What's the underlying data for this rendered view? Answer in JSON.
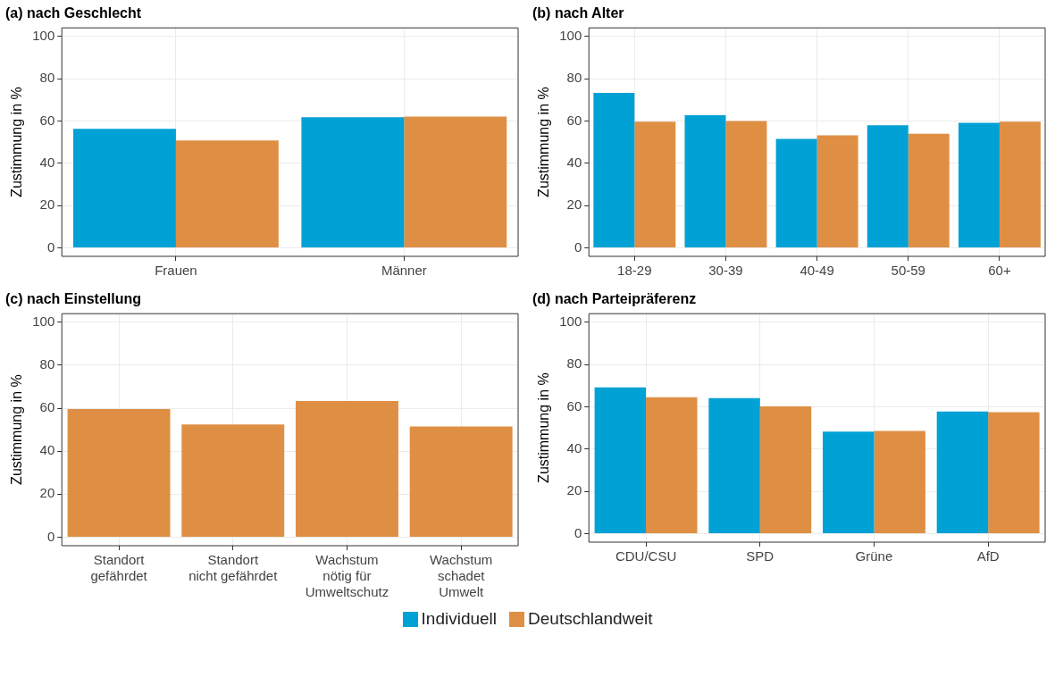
{
  "chart_data": [
    {
      "type": "bar",
      "title": "(a) nach Geschlecht",
      "ylabel": "Zustimmung in %",
      "categories": [
        "Frauen",
        "Männer"
      ],
      "series": [
        {
          "name": "Individuell",
          "color": "#00a1d5",
          "values": [
            56.3,
            61.8
          ]
        },
        {
          "name": "Deutschlandweit",
          "color": "#df8f44",
          "values": [
            50.8,
            62.1
          ]
        }
      ],
      "ylim": [
        -4,
        104
      ],
      "yticks": [
        0,
        20,
        40,
        60,
        80,
        100
      ],
      "grid": true,
      "legend": "bottom"
    },
    {
      "type": "bar",
      "title": "(b) nach Alter",
      "ylabel": "Zustimmung in %",
      "categories": [
        "18-29",
        "30-39",
        "40-49",
        "50-59",
        "60+"
      ],
      "series": [
        {
          "name": "Individuell",
          "color": "#00a1d5",
          "values": [
            73.3,
            62.7,
            51.5,
            58.0,
            59.1
          ]
        },
        {
          "name": "Deutschlandweit",
          "color": "#df8f44",
          "values": [
            59.6,
            60.0,
            53.2,
            53.9,
            59.6
          ]
        }
      ],
      "ylim": [
        -4,
        104
      ],
      "yticks": [
        0,
        20,
        40,
        60,
        80,
        100
      ],
      "grid": true,
      "legend": "bottom"
    },
    {
      "type": "bar",
      "title": "(c) nach Einstellung",
      "ylabel": "Zustimmung in %",
      "categories": [
        "Standort\ngefährdet",
        "Standort\nnicht gefährdet",
        "Wachstum\nnötig für\nUmweltschutz",
        "Wachstum\nschadet\nUmwelt"
      ],
      "series": [
        {
          "name": "Deutschlandweit",
          "color": "#df8f44",
          "values": [
            59.6,
            52.4,
            63.3,
            51.5
          ]
        }
      ],
      "ylim": [
        -4,
        104
      ],
      "yticks": [
        0,
        20,
        40,
        60,
        80,
        100
      ],
      "grid": true,
      "legend": "bottom"
    },
    {
      "type": "bar",
      "title": "(d) nach Parteipräferenz",
      "ylabel": "Zustimmung in %",
      "categories": [
        "CDU/CSU",
        "SPD",
        "Grüne",
        "AfD"
      ],
      "series": [
        {
          "name": "Individuell",
          "color": "#00a1d5",
          "values": [
            69.1,
            64.1,
            48.2,
            57.7
          ]
        },
        {
          "name": "Deutschlandweit",
          "color": "#df8f44",
          "values": [
            64.5,
            60.2,
            48.6,
            57.4
          ]
        }
      ],
      "ylim": [
        -4,
        104
      ],
      "yticks": [
        0,
        20,
        40,
        60,
        80,
        100
      ],
      "grid": true,
      "legend": "bottom"
    }
  ]
}
